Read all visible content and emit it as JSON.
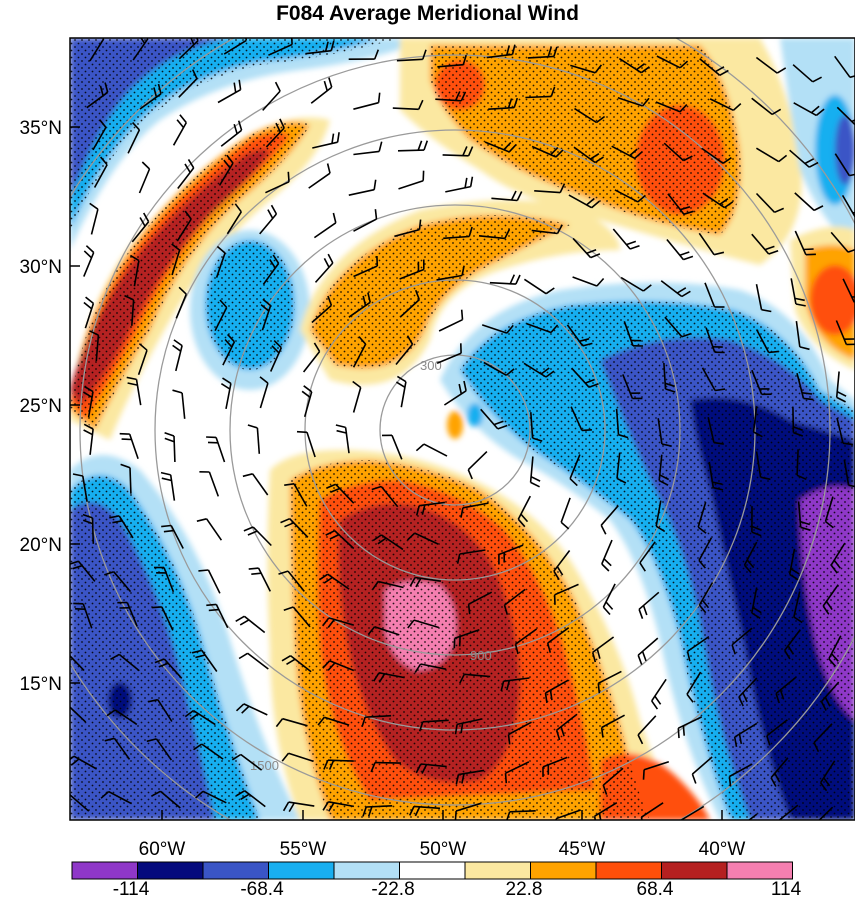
{
  "title": "F084 Average Meridional Wind",
  "lat_labels": [
    "35°N",
    "30°N",
    "25°N",
    "20°N",
    "15°N"
  ],
  "lon_labels": [
    "60°W",
    "55°W",
    "50°W",
    "45°W",
    "40°W"
  ],
  "colorbar": {
    "labels": [
      "-114",
      "-68.4",
      "-22.8",
      "22.8",
      "68.4",
      "114"
    ],
    "colors": [
      "#8f37c8",
      "#050a7d",
      "#3a55c6",
      "#19aff0",
      "#b3e0f6",
      "#ffffff",
      "#fbe8a1",
      "#ffa300",
      "#ff4f0a",
      "#b52020",
      "#f57fb0"
    ]
  },
  "range_ring_labels": {
    "r300": "300",
    "r900": "900",
    "r1500": "1500"
  },
  "chart_data": {
    "type": "heatmap",
    "title": "F084 Average Meridional Wind",
    "contour_levels": [
      -114,
      -91.2,
      -68.4,
      -45.6,
      -22.8,
      22.8,
      45.6,
      68.4,
      91.2,
      114
    ],
    "lat_ticks": [
      35,
      30,
      25,
      20,
      15
    ],
    "lon_ticks": [
      -60,
      -55,
      -50,
      -45,
      -40
    ],
    "range_rings": [
      300,
      900,
      1500
    ],
    "stippling": true,
    "wind_barbs": true
  }
}
